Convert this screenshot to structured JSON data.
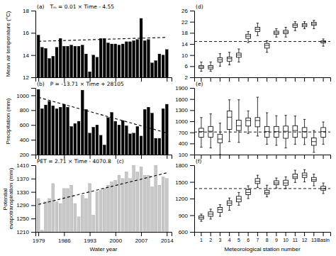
{
  "chart_data": [
    {
      "type": "bar",
      "ylabel": "Mean air temperature (°C)",
      "annotations": [
        "(a)",
        "Tₘ = 0.01 × Time - 4.55"
      ],
      "x": [
        1979,
        1980,
        1981,
        1982,
        1983,
        1984,
        1985,
        1986,
        1987,
        1988,
        1989,
        1990,
        1991,
        1992,
        1993,
        1994,
        1995,
        1996,
        1997,
        1998,
        1999,
        2000,
        2001,
        2002,
        2003,
        2004,
        2005,
        2006,
        2007,
        2008,
        2009,
        2010,
        2011,
        2012,
        2013,
        2014
      ],
      "xlim": [
        1978.2,
        2015.3
      ],
      "xticks": [
        1979,
        1986,
        1993,
        2000,
        2007,
        2014
      ],
      "ylim": [
        12,
        18
      ],
      "yticks": [
        12,
        14,
        16,
        18
      ],
      "tick_labels": "y",
      "series": [
        {
          "type": "bar",
          "color": "#000000",
          "values": [
            15.8,
            14.7,
            14.6,
            13.7,
            13.9,
            14.7,
            15.5,
            14.8,
            14.8,
            14.9,
            14.8,
            14.8,
            14.9,
            14.1,
            12.5,
            14.0,
            13.8,
            15.5,
            15.5,
            15.1,
            15.0,
            15.0,
            14.9,
            15.0,
            15.2,
            15.2,
            15.3,
            15.4,
            17.3,
            15.3,
            15.4,
            13.3,
            13.5,
            14.1,
            14.0,
            14.5
          ]
        },
        {
          "type": "line",
          "line_style": "dashed",
          "color": "#000000",
          "values": [
            15.24,
            15.25,
            15.26,
            15.27,
            15.28,
            15.29,
            15.3,
            15.31,
            15.32,
            15.33,
            15.34,
            15.35,
            15.36,
            15.37,
            15.38,
            15.39,
            15.4,
            15.41,
            15.42,
            15.43,
            15.44,
            15.45,
            15.46,
            15.47,
            15.48,
            15.49,
            15.5,
            15.51,
            15.52,
            15.53,
            15.54,
            15.55,
            15.56,
            15.57,
            15.58,
            15.59
          ]
        }
      ]
    },
    {
      "type": "bar",
      "ylabel": "Precipitation (mm)",
      "annotations": [
        "(b)",
        "P = -13.71 × Time + 28105"
      ],
      "x": [
        1979,
        1980,
        1981,
        1982,
        1983,
        1984,
        1985,
        1986,
        1987,
        1988,
        1989,
        1990,
        1991,
        1992,
        1993,
        1994,
        1995,
        1996,
        1997,
        1998,
        1999,
        2000,
        2001,
        2002,
        2003,
        2004,
        2005,
        2006,
        2007,
        2008,
        2009,
        2010,
        2011,
        2012,
        2013,
        2014
      ],
      "xlim": [
        1978.2,
        2015.3
      ],
      "xticks": [
        1979,
        1986,
        1993,
        2000,
        2007,
        2014
      ],
      "ylim": [
        200,
        1100
      ],
      "yticks": [
        200,
        400,
        600,
        800,
        1000
      ],
      "tick_labels": "y",
      "series": [
        {
          "type": "bar",
          "color": "#000000",
          "values": [
            1080,
            820,
            870,
            920,
            860,
            820,
            840,
            880,
            840,
            580,
            620,
            650,
            1070,
            810,
            490,
            570,
            600,
            460,
            330,
            700,
            770,
            650,
            600,
            660,
            590,
            480,
            490,
            580,
            450,
            810,
            840,
            760,
            420,
            420,
            820,
            880
          ]
        },
        {
          "type": "line",
          "line_style": "dashed",
          "color": "#000000",
          "values": [
            972.91,
            959.2,
            945.49,
            931.78,
            918.07,
            904.36,
            890.65,
            876.94,
            863.23,
            849.52,
            835.81,
            822.1,
            808.39,
            794.68,
            780.97,
            767.26,
            753.55,
            739.84,
            726.13,
            712.42,
            698.71,
            685.0,
            671.29,
            657.58,
            643.87,
            630.16,
            616.45,
            602.74,
            589.03,
            575.32,
            561.61,
            547.9,
            534.19,
            520.48,
            506.77,
            493.06
          ]
        }
      ]
    },
    {
      "type": "bar",
      "ylabel": "Potential evapotranspiration (mm)",
      "xlabel": "Water year",
      "annotations": [
        "PET = 2.71 × Time - 4070.8",
        "(c)"
      ],
      "x": [
        1979,
        1980,
        1981,
        1982,
        1983,
        1984,
        1985,
        1986,
        1987,
        1988,
        1989,
        1990,
        1991,
        1992,
        1993,
        1994,
        1995,
        1996,
        1997,
        1998,
        1999,
        2000,
        2001,
        2002,
        2003,
        2004,
        2005,
        2006,
        2007,
        2008,
        2009,
        2010,
        2011,
        2012,
        2013,
        2014
      ],
      "xlim": [
        1978.2,
        2015.3
      ],
      "xticks": [
        1979,
        1986,
        1993,
        2000,
        2007,
        2014
      ],
      "ylim": [
        1210,
        1410
      ],
      "yticks": [
        1210,
        1250,
        1290,
        1330,
        1370,
        1410
      ],
      "series": [
        {
          "type": "bar",
          "color": "#c8c8c8",
          "values": [
            1310,
            1215,
            1300,
            1310,
            1355,
            1300,
            1295,
            1340,
            1340,
            1350,
            1295,
            1255,
            1320,
            1310,
            1355,
            1260,
            1330,
            1335,
            1340,
            1350,
            1360,
            1365,
            1380,
            1370,
            1390,
            1370,
            1410,
            1390,
            1405,
            1380,
            1380,
            1345,
            1410,
            1350,
            1375,
            1370
          ]
        },
        {
          "type": "line",
          "line_style": "dashed",
          "color": "#000000",
          "values": [
            1292.29,
            1295.0,
            1297.71,
            1300.42,
            1303.13,
            1305.84,
            1308.55,
            1311.26,
            1313.97,
            1316.68,
            1319.39,
            1322.1,
            1324.81,
            1327.52,
            1330.23,
            1332.94,
            1335.65,
            1338.36,
            1341.07,
            1343.78,
            1346.49,
            1349.2,
            1351.91,
            1354.62,
            1357.33,
            1360.04,
            1362.75,
            1365.46,
            1368.17,
            1370.88,
            1373.59,
            1376.3,
            1379.01,
            1381.72,
            1384.43,
            1387.14
          ]
        }
      ]
    },
    {
      "type": "box",
      "annotations": [
        "(d)"
      ],
      "color": "#000000",
      "categories": [
        "1",
        "2",
        "3",
        "4",
        "5",
        "6",
        "7",
        "8",
        "9",
        "10",
        "11",
        "12",
        "13",
        "Basin"
      ],
      "median": [
        5.7,
        5.6,
        8.3,
        8.7,
        10.0,
        16.8,
        19.3,
        13.5,
        18.0,
        18.3,
        20.7,
        20.8,
        21.2,
        14.8
      ],
      "q1": [
        5.2,
        5.0,
        7.5,
        7.8,
        9.2,
        16.0,
        18.5,
        12.5,
        17.5,
        17.7,
        20.0,
        20.2,
        20.7,
        14.4
      ],
      "q3": [
        6.2,
        6.2,
        9.0,
        9.3,
        10.7,
        17.5,
        20.0,
        14.2,
        18.6,
        18.9,
        21.2,
        21.3,
        21.8,
        15.1
      ],
      "whisker_low": [
        4.2,
        4.2,
        6.0,
        6.5,
        7.5,
        14.5,
        17.0,
        11.0,
        16.5,
        16.5,
        18.8,
        19.5,
        19.5,
        13.2
      ],
      "whisker_high": [
        7.5,
        7.5,
        10.5,
        11.0,
        12.2,
        18.5,
        21.5,
        15.2,
        19.5,
        20.0,
        22.0,
        22.0,
        22.5,
        15.8
      ],
      "reference_line": {
        "value": 14.9,
        "line_style": "dashed"
      },
      "ylim": [
        2,
        26
      ],
      "yticks": [
        2,
        6,
        10,
        14,
        18,
        22,
        26
      ],
      "tick_labels": "y"
    },
    {
      "type": "box",
      "annotations": [
        "(e)"
      ],
      "color": "#000000",
      "categories": [
        "1",
        "2",
        "3",
        "4",
        "5",
        "6",
        "7",
        "8",
        "9",
        "10",
        "11",
        "12",
        "13",
        "Basin"
      ],
      "median": [
        720,
        730,
        520,
        1110,
        880,
        1020,
        1020,
        720,
        720,
        730,
        750,
        720,
        450,
        720
      ],
      "q1": [
        570,
        570,
        420,
        780,
        750,
        870,
        850,
        570,
        570,
        540,
        570,
        560,
        350,
        570
      ],
      "q3": [
        810,
        860,
        650,
        1280,
        1030,
        1090,
        1100,
        860,
        860,
        870,
        880,
        830,
        550,
        830
      ],
      "whisker_low": [
        300,
        280,
        100,
        450,
        430,
        670,
        600,
        380,
        350,
        280,
        380,
        370,
        160,
        380
      ],
      "whisker_high": [
        1100,
        1200,
        950,
        1580,
        1580,
        1280,
        1650,
        1230,
        1150,
        1160,
        1140,
        1050,
        750,
        980
      ],
      "reference_line": {
        "value": 710,
        "line_style": "dashed"
      },
      "ylim": [
        100,
        1900
      ],
      "yticks": [
        100,
        400,
        700,
        1000,
        1300,
        1600,
        1900
      ],
      "tick_labels": "y"
    },
    {
      "type": "box",
      "annotations": [
        "(f)"
      ],
      "color": "#000000",
      "xlabel": "Meteorological station number",
      "categories": [
        "1",
        "2",
        "3",
        "4",
        "5",
        "6",
        "7",
        "8",
        "9",
        "10",
        "11",
        "12",
        "13",
        "Basin"
      ],
      "median": [
        860,
        920,
        1000,
        1120,
        1190,
        1310,
        1510,
        1310,
        1480,
        1480,
        1590,
        1620,
        1540,
        1380
      ],
      "q1": [
        830,
        880,
        950,
        1080,
        1140,
        1270,
        1470,
        1280,
        1450,
        1440,
        1560,
        1580,
        1510,
        1350
      ],
      "q3": [
        890,
        960,
        1040,
        1160,
        1240,
        1360,
        1560,
        1350,
        1520,
        1530,
        1640,
        1660,
        1580,
        1420
      ],
      "whisker_low": [
        790,
        830,
        880,
        990,
        1080,
        1200,
        1400,
        1230,
        1390,
        1380,
        1490,
        1500,
        1430,
        1290
      ],
      "whisker_high": [
        920,
        1010,
        1090,
        1210,
        1310,
        1430,
        1620,
        1440,
        1570,
        1590,
        1710,
        1720,
        1640,
        1480
      ],
      "reference_line": {
        "value": 1380,
        "line_style": "dashed"
      },
      "ylim": [
        600,
        1800
      ],
      "yticks": [
        600,
        900,
        1200,
        1500,
        1800
      ]
    }
  ]
}
